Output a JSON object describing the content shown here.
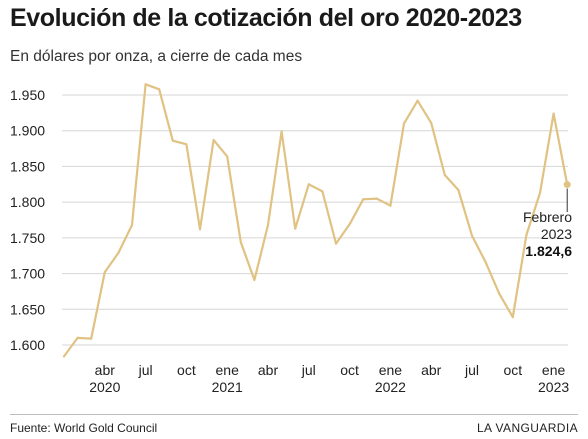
{
  "header": {
    "title": "Evolución de la cotización del oro 2020-2023",
    "subtitle": "En dólares por onza, a cierre de cada mes"
  },
  "footer": {
    "source": "Fuente: World Gold Council",
    "brand": "LA VANGUARDIA"
  },
  "colors": {
    "line": "#e0c283",
    "grid": "#d6d6d6",
    "text": "#222222"
  },
  "chart_data": {
    "type": "line",
    "title": "Evolución de la cotización del oro 2020-2023",
    "subtitle": "En dólares por onza, a cierre de cada mes",
    "xlabel": "",
    "ylabel": "",
    "ylim": [
      1580,
      1975
    ],
    "yticks": [
      1600,
      1650,
      1700,
      1750,
      1800,
      1850,
      1900,
      1950
    ],
    "ytick_labels": [
      "1.600",
      "1.650",
      "1.700",
      "1.750",
      "1.800",
      "1.850",
      "1.900",
      "1.950"
    ],
    "grid": true,
    "xticks": [
      {
        "index": 3,
        "month": "abr",
        "year": "2020"
      },
      {
        "index": 6,
        "month": "jul",
        "year": ""
      },
      {
        "index": 9,
        "month": "oct",
        "year": ""
      },
      {
        "index": 12,
        "month": "ene",
        "year": "2021"
      },
      {
        "index": 15,
        "month": "abr",
        "year": ""
      },
      {
        "index": 18,
        "month": "jul",
        "year": ""
      },
      {
        "index": 21,
        "month": "oct",
        "year": ""
      },
      {
        "index": 24,
        "month": "ene",
        "year": "2022"
      },
      {
        "index": 27,
        "month": "abr",
        "year": ""
      },
      {
        "index": 30,
        "month": "jul",
        "year": ""
      },
      {
        "index": 33,
        "month": "oct",
        "year": ""
      },
      {
        "index": 36,
        "month": "ene",
        "year": "2023"
      }
    ],
    "x": [
      "2020-01",
      "2020-02",
      "2020-03",
      "2020-04",
      "2020-05",
      "2020-06",
      "2020-07",
      "2020-08",
      "2020-09",
      "2020-10",
      "2020-11",
      "2020-12",
      "2021-01",
      "2021-02",
      "2021-03",
      "2021-04",
      "2021-05",
      "2021-06",
      "2021-07",
      "2021-08",
      "2021-09",
      "2021-10",
      "2021-11",
      "2021-12",
      "2022-01",
      "2022-02",
      "2022-03",
      "2022-04",
      "2022-05",
      "2022-06",
      "2022-07",
      "2022-08",
      "2022-09",
      "2022-10",
      "2022-11",
      "2022-12",
      "2023-01",
      "2023-02"
    ],
    "values": [
      1584,
      1610,
      1609,
      1702,
      1729,
      1768,
      1965,
      1958,
      1886,
      1881,
      1762,
      1887,
      1864,
      1744,
      1691,
      1768,
      1899,
      1763,
      1825,
      1815,
      1742,
      1769,
      1804,
      1805,
      1795,
      1910,
      1942,
      1911,
      1838,
      1817,
      1753,
      1716,
      1672,
      1639,
      1754,
      1813,
      1924,
      1824.6
    ],
    "annotation": {
      "label_month": "Febrero",
      "label_year": "2023",
      "label_value": "1.824,6",
      "index": 37
    }
  }
}
